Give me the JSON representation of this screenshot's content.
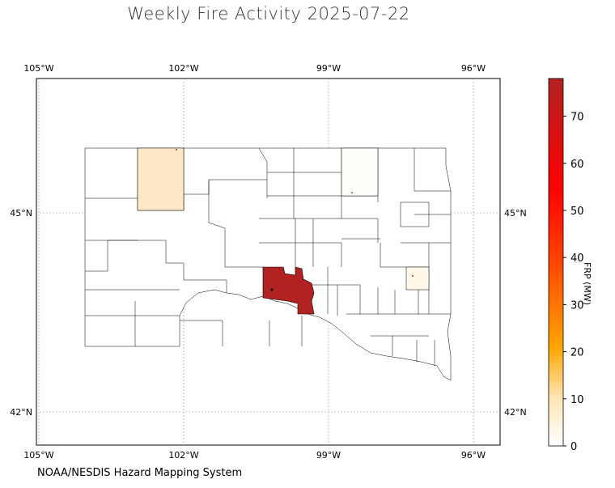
{
  "title": "Weekly Fire Activity 2025-07-22",
  "source": "NOAA/NESDIS Hazard Mapping System",
  "colorbar": {
    "label": "FRP (MW)",
    "ticks": [
      "0",
      "10",
      "20",
      "30",
      "40",
      "50",
      "60",
      "70"
    ],
    "max": 78,
    "colors": [
      "#ffffff",
      "#ffe8b0",
      "#ffa500",
      "#ff0000",
      "#b22222"
    ]
  },
  "axes": {
    "lon_labels_top": [
      "105°W",
      "102°W",
      "99°W",
      "96°W"
    ],
    "lon_labels_bottom": [
      "105°W",
      "102°W",
      "99°W",
      "96°W"
    ],
    "lat_labels_left": [
      "45°N",
      "42°N"
    ],
    "lat_labels_right": [
      "45°N",
      "42°N"
    ]
  },
  "chart_data": {
    "type": "heatmap",
    "title": "Weekly Fire Activity 2025-07-22",
    "colorbar_label": "FRP (MW)",
    "colorbar_range": [
      0,
      78
    ],
    "lon_range": [
      "105°W",
      "96°W"
    ],
    "lat_range": [
      "42°N",
      "45°N"
    ],
    "highlighted_counties": [
      {
        "lon": -100.4,
        "lat": 44.0,
        "frp": 76
      },
      {
        "lon": -102.6,
        "lat": 45.35,
        "frp": 7
      },
      {
        "lon": -97.0,
        "lat": 44.1,
        "frp": 2
      },
      {
        "lon": -98.3,
        "lat": 45.35,
        "frp": 0.5
      }
    ],
    "fire_points": [
      {
        "lon": -102.15,
        "lat": 45.95
      },
      {
        "lon": -98.5,
        "lat": 45.4
      },
      {
        "lon": -97.3,
        "lat": 44.25
      },
      {
        "lon": -100.2,
        "lat": 43.9
      }
    ]
  }
}
